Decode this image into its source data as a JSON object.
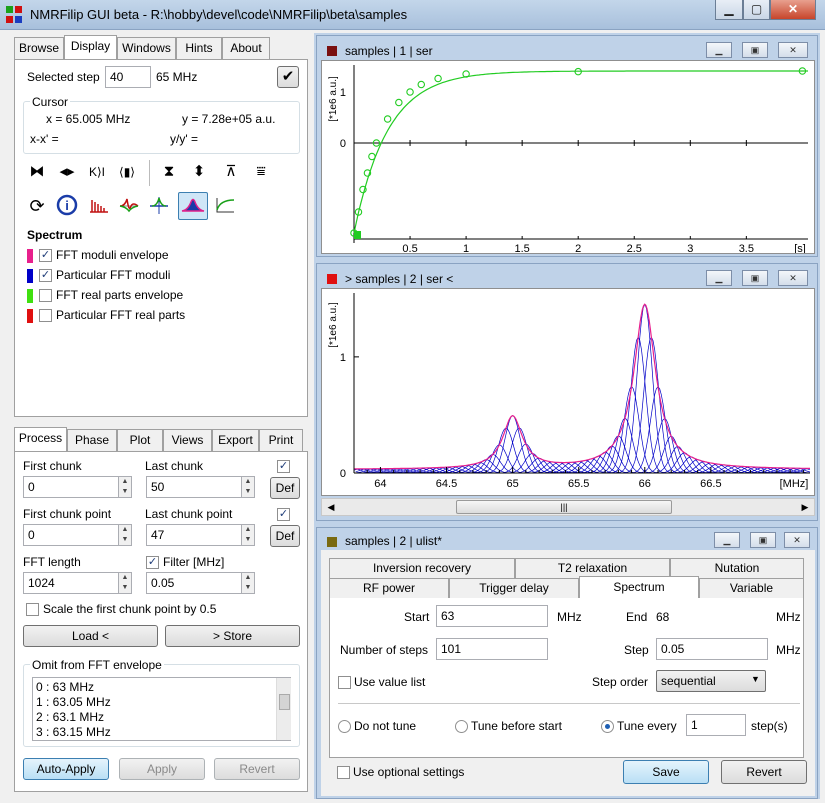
{
  "window": {
    "title": "NMRFilip GUI beta - R:\\hobby\\devel\\code\\NMRFilip\\beta\\samples",
    "min": "▁",
    "max": "▢",
    "close": "✕"
  },
  "top_tabs": [
    "Browse",
    "Display",
    "Windows",
    "Hints",
    "About"
  ],
  "display": {
    "selected_step_label": "Selected step",
    "selected_step_value": "40",
    "selected_step_freq": "65 MHz",
    "cursor_title": "Cursor",
    "cursor_x": "x = 65.005 MHz",
    "cursor_y": "y = 7.28e+05 a.u.",
    "cursor_dx": "x-x' =",
    "cursor_dy": "y/y' =",
    "spectrum_title": "Spectrum",
    "legend": [
      {
        "label": "FFT moduli envelope",
        "color": "#e8208c",
        "checked": true
      },
      {
        "label": "Particular FFT moduli",
        "color": "#0000c8",
        "checked": true
      },
      {
        "label": "FFT real parts envelope",
        "color": "#40e010",
        "checked": false
      },
      {
        "label": "Particular FFT real parts",
        "color": "#e01010",
        "checked": false
      }
    ]
  },
  "process_tabs": [
    "Process",
    "Phase",
    "Plot",
    "Views",
    "Export",
    "Print"
  ],
  "process": {
    "first_chunk_label": "First chunk",
    "first_chunk": "0",
    "last_chunk_label": "Last chunk",
    "last_chunk": "50",
    "first_chunk_point_label": "First chunk point",
    "first_chunk_point": "0",
    "last_chunk_point_label": "Last chunk point",
    "last_chunk_point": "47",
    "fft_length_label": "FFT length",
    "fft_length": "1024",
    "filter_label": "Filter [MHz]",
    "filter": "0.05",
    "def_label": "Def",
    "scale_label": "Scale the first chunk point by 0.5",
    "load_label": "Load <",
    "store_label": "> Store",
    "omit_title": "Omit from FFT envelope",
    "omit_items": [
      "0 : 63 MHz",
      "1 : 63.05 MHz",
      "2 : 63.1 MHz",
      "3 : 63.15 MHz"
    ],
    "auto_apply": "Auto-Apply",
    "apply": "Apply",
    "revert": "Revert"
  },
  "plot1": {
    "title": "samples | 1 | ser",
    "ylabel": "[*1e6 a.u.]",
    "xunit": "[s]",
    "color": "#7a1010",
    "chart_data": {
      "type": "line",
      "x": [
        0.0,
        0.04,
        0.08,
        0.12,
        0.16,
        0.2,
        0.3,
        0.4,
        0.5,
        0.6,
        0.75,
        1.0,
        2.0,
        4.0
      ],
      "y": [
        -3.0,
        -2.3,
        -1.55,
        -1.0,
        -0.45,
        0.0,
        0.8,
        1.35,
        1.7,
        1.95,
        2.15,
        2.3,
        2.38,
        2.4
      ],
      "xticks": [
        "0.5",
        "1",
        "1.5",
        "2",
        "2.5",
        "3",
        "3.5"
      ],
      "yticks": [
        "1",
        "0"
      ],
      "xlim": [
        0,
        4.05
      ],
      "ylim": [
        -3.2,
        2.6
      ],
      "series_color": "#22cc22"
    }
  },
  "plot2": {
    "title": "> samples | 2 | ser <",
    "ylabel": "[*1e6 a.u.]",
    "xunit": "[MHz]",
    "color": "#e01010",
    "chart_data": {
      "type": "line",
      "xticks": [
        "64",
        "64.5",
        "65",
        "65.5",
        "66",
        "66.5"
      ],
      "yticks": [
        "1",
        "0"
      ],
      "xlim": [
        63.8,
        67.25
      ],
      "ylim": [
        0,
        1.55
      ],
      "peaks": [
        {
          "center": 65.0,
          "height": 0.45
        },
        {
          "center": 66.0,
          "height": 1.42
        }
      ],
      "envelope_color": "#e8208c",
      "particular_color": "#0000c8"
    }
  },
  "ulist": {
    "title": "samples | 2 | ulist*",
    "tabs_row1": [
      "Inversion recovery",
      "T2 relaxation",
      "Nutation"
    ],
    "tabs_row2": [
      "RF power",
      "Trigger delay",
      "Spectrum",
      "Variable"
    ],
    "start_label": "Start",
    "start": "63",
    "start_unit": "MHz",
    "end_label": "End",
    "end": "68",
    "end_unit": "MHz",
    "steps_label": "Number of steps",
    "steps": "101",
    "step_label": "Step",
    "step": "0.05",
    "step_unit": "MHz",
    "use_value_list": "Use value list",
    "step_order_label": "Step order",
    "step_order": "sequential",
    "tune_none": "Do not tune",
    "tune_before": "Tune before start",
    "tune_every": "Tune every",
    "tune_every_value": "1",
    "tune_unit": "step(s)",
    "optional": "Use optional settings",
    "save": "Save",
    "revert": "Revert"
  }
}
